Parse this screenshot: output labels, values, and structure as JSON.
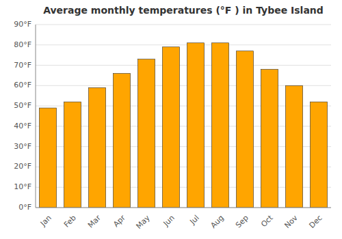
{
  "chart_data": {
    "type": "bar",
    "title": "Average monthly temperatures (°F ) in Tybee Island",
    "categories": [
      "Jan",
      "Feb",
      "Mar",
      "Apr",
      "May",
      "Jun",
      "Jul",
      "Aug",
      "Sep",
      "Oct",
      "Nov",
      "Dec"
    ],
    "values": [
      49,
      52,
      59,
      66,
      73,
      79,
      81,
      81,
      77,
      68,
      60,
      52
    ],
    "color": "#FFA500",
    "ylim": [
      0,
      90
    ],
    "yticks": [
      {
        "value": 0,
        "label": "0°F"
      },
      {
        "value": 10,
        "label": "10°F"
      },
      {
        "value": 20,
        "label": "20°F"
      },
      {
        "value": 30,
        "label": "30°F"
      },
      {
        "value": 40,
        "label": "40°F"
      },
      {
        "value": 50,
        "label": "50°F"
      },
      {
        "value": 60,
        "label": "60°F"
      },
      {
        "value": 70,
        "label": "70°F"
      },
      {
        "value": 80,
        "label": "80°F"
      },
      {
        "value": 90,
        "label": "90°F"
      }
    ],
    "grid": true
  }
}
